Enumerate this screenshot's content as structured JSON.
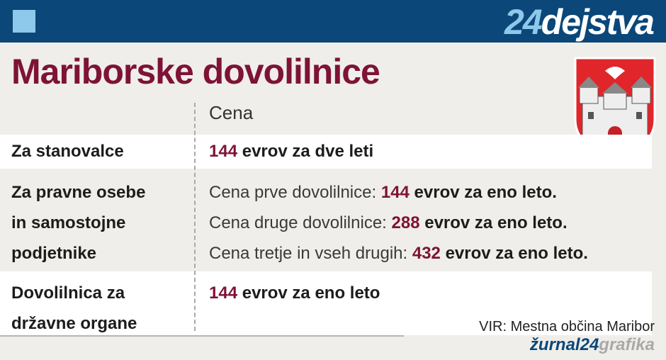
{
  "header": {
    "brand": {
      "number": "24",
      "word": "dejstva"
    },
    "title": "Mariborske dovolilnice"
  },
  "table": {
    "column_header": "Cena",
    "rows": [
      {
        "label": [
          "Za stanovalce"
        ],
        "prices": [
          {
            "amount": 144,
            "text": "evrov za dve leti"
          }
        ]
      },
      {
        "label": [
          "Za pravne osebe",
          "in samostojne",
          "podjetnike"
        ],
        "prices": [
          {
            "prefix": "Cena prve dovolilnice:",
            "amount": 144,
            "text": "evrov za eno leto."
          },
          {
            "prefix": "Cena druge dovolilnice:",
            "amount": 288,
            "text": "evrov za eno leto."
          },
          {
            "prefix": "Cena tretje in vseh drugih:",
            "amount": 432,
            "text": "evrov za eno leto."
          }
        ]
      },
      {
        "label": [
          "Dovolilnica za",
          "državne organe"
        ],
        "prices": [
          {
            "amount": 144,
            "text": "evrov  za eno leto"
          }
        ]
      }
    ]
  },
  "footer": {
    "source": "VIR: Mestna občina Maribor",
    "brand": {
      "main": "žurnal24",
      "suffix": "grafika"
    }
  }
}
